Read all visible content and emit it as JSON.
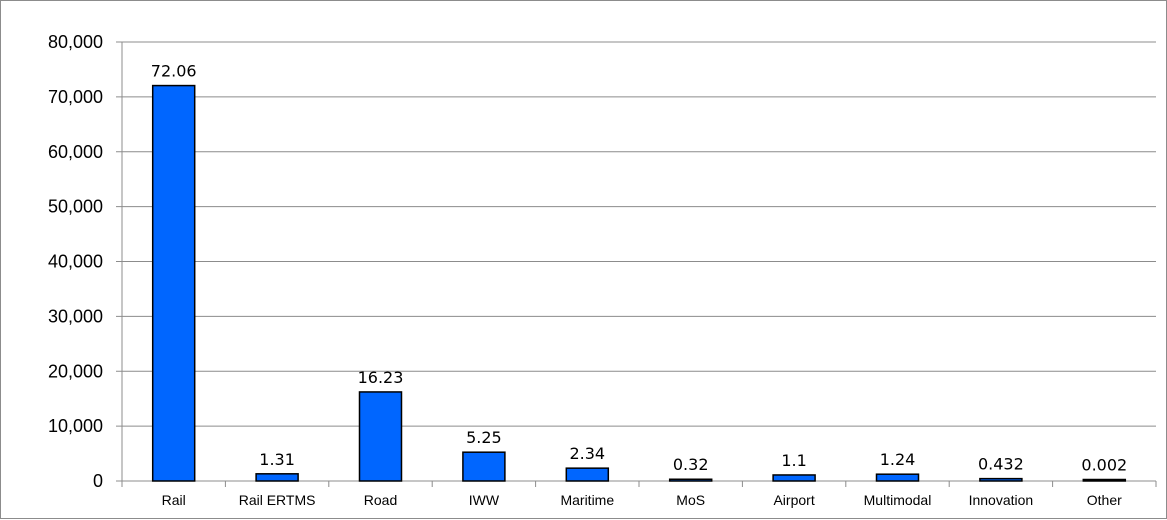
{
  "chart_data": {
    "type": "bar",
    "title": "",
    "xlabel": "",
    "ylabel": "",
    "categories": [
      "Rail",
      "Rail ERTMS",
      "Road",
      "IWW",
      "Maritime",
      "MoS",
      "Airport",
      "Multimodal",
      "Innovation",
      "Other"
    ],
    "values": [
      72060,
      1310,
      16230,
      5250,
      2340,
      320,
      1100,
      1240,
      432,
      2
    ],
    "data_labels": [
      "72.06",
      "1.31",
      "16.23",
      "5.25",
      "2.34",
      "0.32",
      "1.1",
      "1.24",
      "0.432",
      "0.002"
    ],
    "ylim": [
      0,
      80000
    ],
    "y_ticks": [
      0,
      10000,
      20000,
      30000,
      40000,
      50000,
      60000,
      70000,
      80000
    ],
    "y_tick_labels": [
      "0",
      "10,000",
      "20,000",
      "30,000",
      "40,000",
      "50,000",
      "60,000",
      "70,000",
      "80,000"
    ],
    "grid": true,
    "legend": "none",
    "bar_color": "#0066ff",
    "bar_border_color": "#000000",
    "grid_color": "#8c8c8c"
  }
}
